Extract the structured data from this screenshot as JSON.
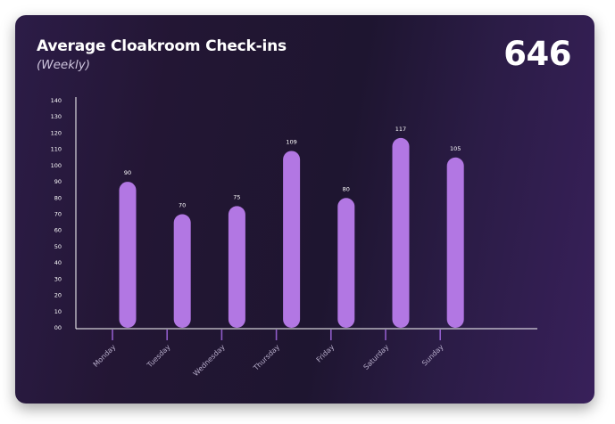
{
  "header": {
    "title": "Average Cloakroom Check-ins",
    "subtitle": "(Weekly)",
    "total": "646"
  },
  "colors": {
    "bar": "#b277e3",
    "axis": "#ffffff",
    "tick_marks": "#8f5cc9"
  },
  "chart_data": {
    "type": "bar",
    "title": "Average Cloakroom Check-ins",
    "subtitle": "(Weekly)",
    "categories": [
      "Monday",
      "Tuesday",
      "Wednesday",
      "Thursday",
      "Friday",
      "Saturday",
      "Sunday"
    ],
    "values": [
      90,
      70,
      75,
      109,
      80,
      117,
      105
    ],
    "ylim": [
      0,
      140
    ],
    "yticks": [
      "00",
      "10",
      "20",
      "30",
      "40",
      "50",
      "60",
      "70",
      "80",
      "90",
      "100",
      "110",
      "120",
      "130",
      "140"
    ],
    "grid": false,
    "legend": "none"
  }
}
